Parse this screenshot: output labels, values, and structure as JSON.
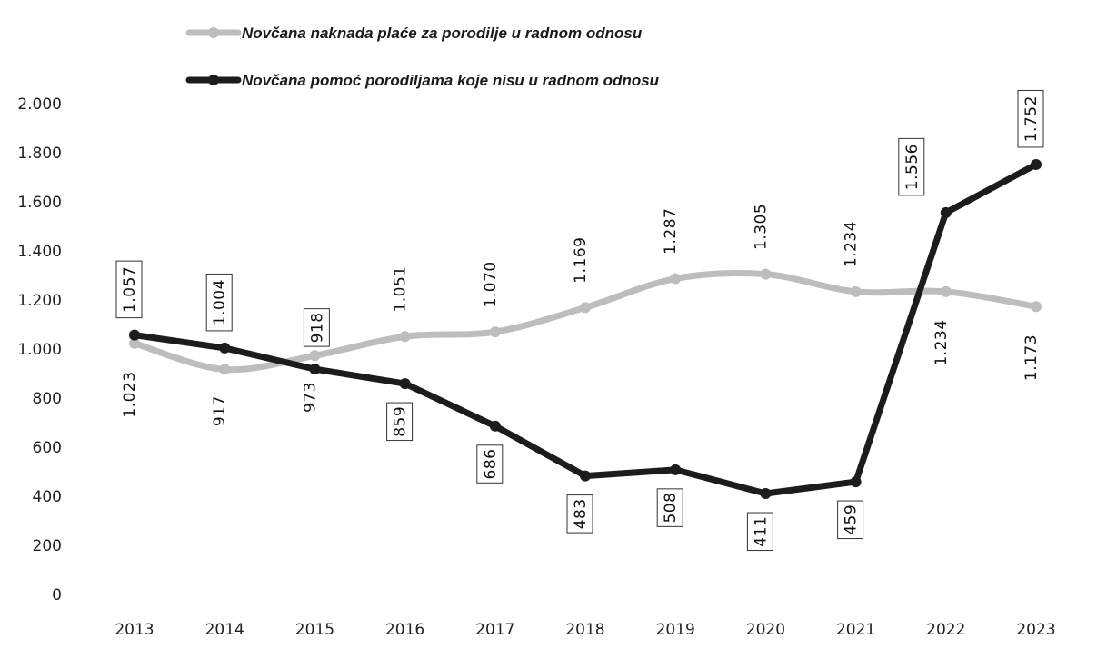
{
  "chart_data": {
    "type": "line",
    "title": "",
    "xlabel": "",
    "ylabel": "",
    "categories": [
      "2013",
      "2014",
      "2015",
      "2016",
      "2017",
      "2018",
      "2019",
      "2020",
      "2021",
      "2022",
      "2023"
    ],
    "ylim": [
      0,
      2000
    ],
    "yticks": [
      0,
      200,
      400,
      600,
      800,
      1000,
      1200,
      1400,
      1600,
      1800,
      2000
    ],
    "ytick_labels": [
      "0",
      "200",
      "400",
      "600",
      "800",
      "1.000",
      "1.200",
      "1.400",
      "1.600",
      "1.800",
      "2.000"
    ],
    "grid": false,
    "legend_position": "top-left",
    "series": [
      {
        "name": "Novčana naknada plaće za  porodilje u radnom odnosu",
        "color": "#bdbdbd",
        "values": [
          1023,
          917,
          973,
          1051,
          1070,
          1169,
          1287,
          1305,
          1234,
          1234,
          1173
        ],
        "labels": [
          "1.023",
          "917",
          "973",
          "1.051",
          "1.070",
          "1.169",
          "1.287",
          "1.305",
          "1.234",
          "1.234",
          "1.173"
        ]
      },
      {
        "name": "Novčana pomoć porodiljama koje nisu u radnom odnosu",
        "color": "#1c1c1c",
        "values": [
          1057,
          1004,
          918,
          859,
          686,
          483,
          508,
          411,
          459,
          1556,
          1752
        ],
        "labels": [
          "1.057",
          "1.004",
          "918",
          "859",
          "686",
          "483",
          "508",
          "411",
          "459",
          "1.556",
          "1.752"
        ]
      }
    ]
  }
}
